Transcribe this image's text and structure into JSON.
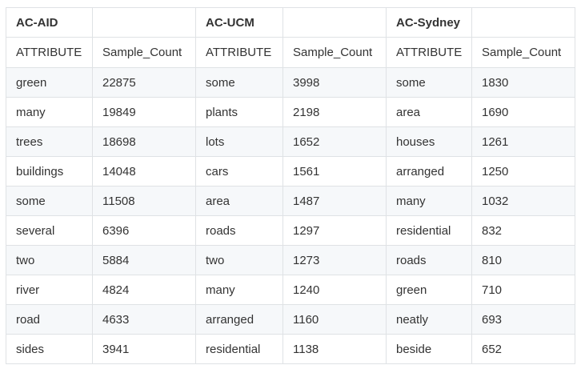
{
  "table": {
    "groups": [
      "AC-AID",
      "",
      "AC-UCM",
      "",
      "AC-Sydney",
      ""
    ],
    "subheaders": [
      "ATTRIBUTE",
      "Sample_Count",
      "ATTRIBUTE",
      "Sample_Count",
      "ATTRIBUTE",
      "Sample_Count"
    ],
    "rows": [
      [
        "green",
        "22875",
        "some",
        "3998",
        "some",
        "1830"
      ],
      [
        "many",
        "19849",
        "plants",
        "2198",
        "area",
        "1690"
      ],
      [
        "trees",
        "18698",
        "lots",
        "1652",
        "houses",
        "1261"
      ],
      [
        "buildings",
        "14048",
        "cars",
        "1561",
        "arranged",
        "1250"
      ],
      [
        "some",
        "11508",
        "area",
        "1487",
        "many",
        "1032"
      ],
      [
        "several",
        "6396",
        "roads",
        "1297",
        "residential",
        "832"
      ],
      [
        "two",
        "5884",
        "two",
        "1273",
        "roads",
        "810"
      ],
      [
        "river",
        "4824",
        "many",
        "1240",
        "green",
        "710"
      ],
      [
        "road",
        "4633",
        "arranged",
        "1160",
        "neatly",
        "693"
      ],
      [
        "sides",
        "3941",
        "residential",
        "1138",
        "beside",
        "652"
      ]
    ]
  }
}
